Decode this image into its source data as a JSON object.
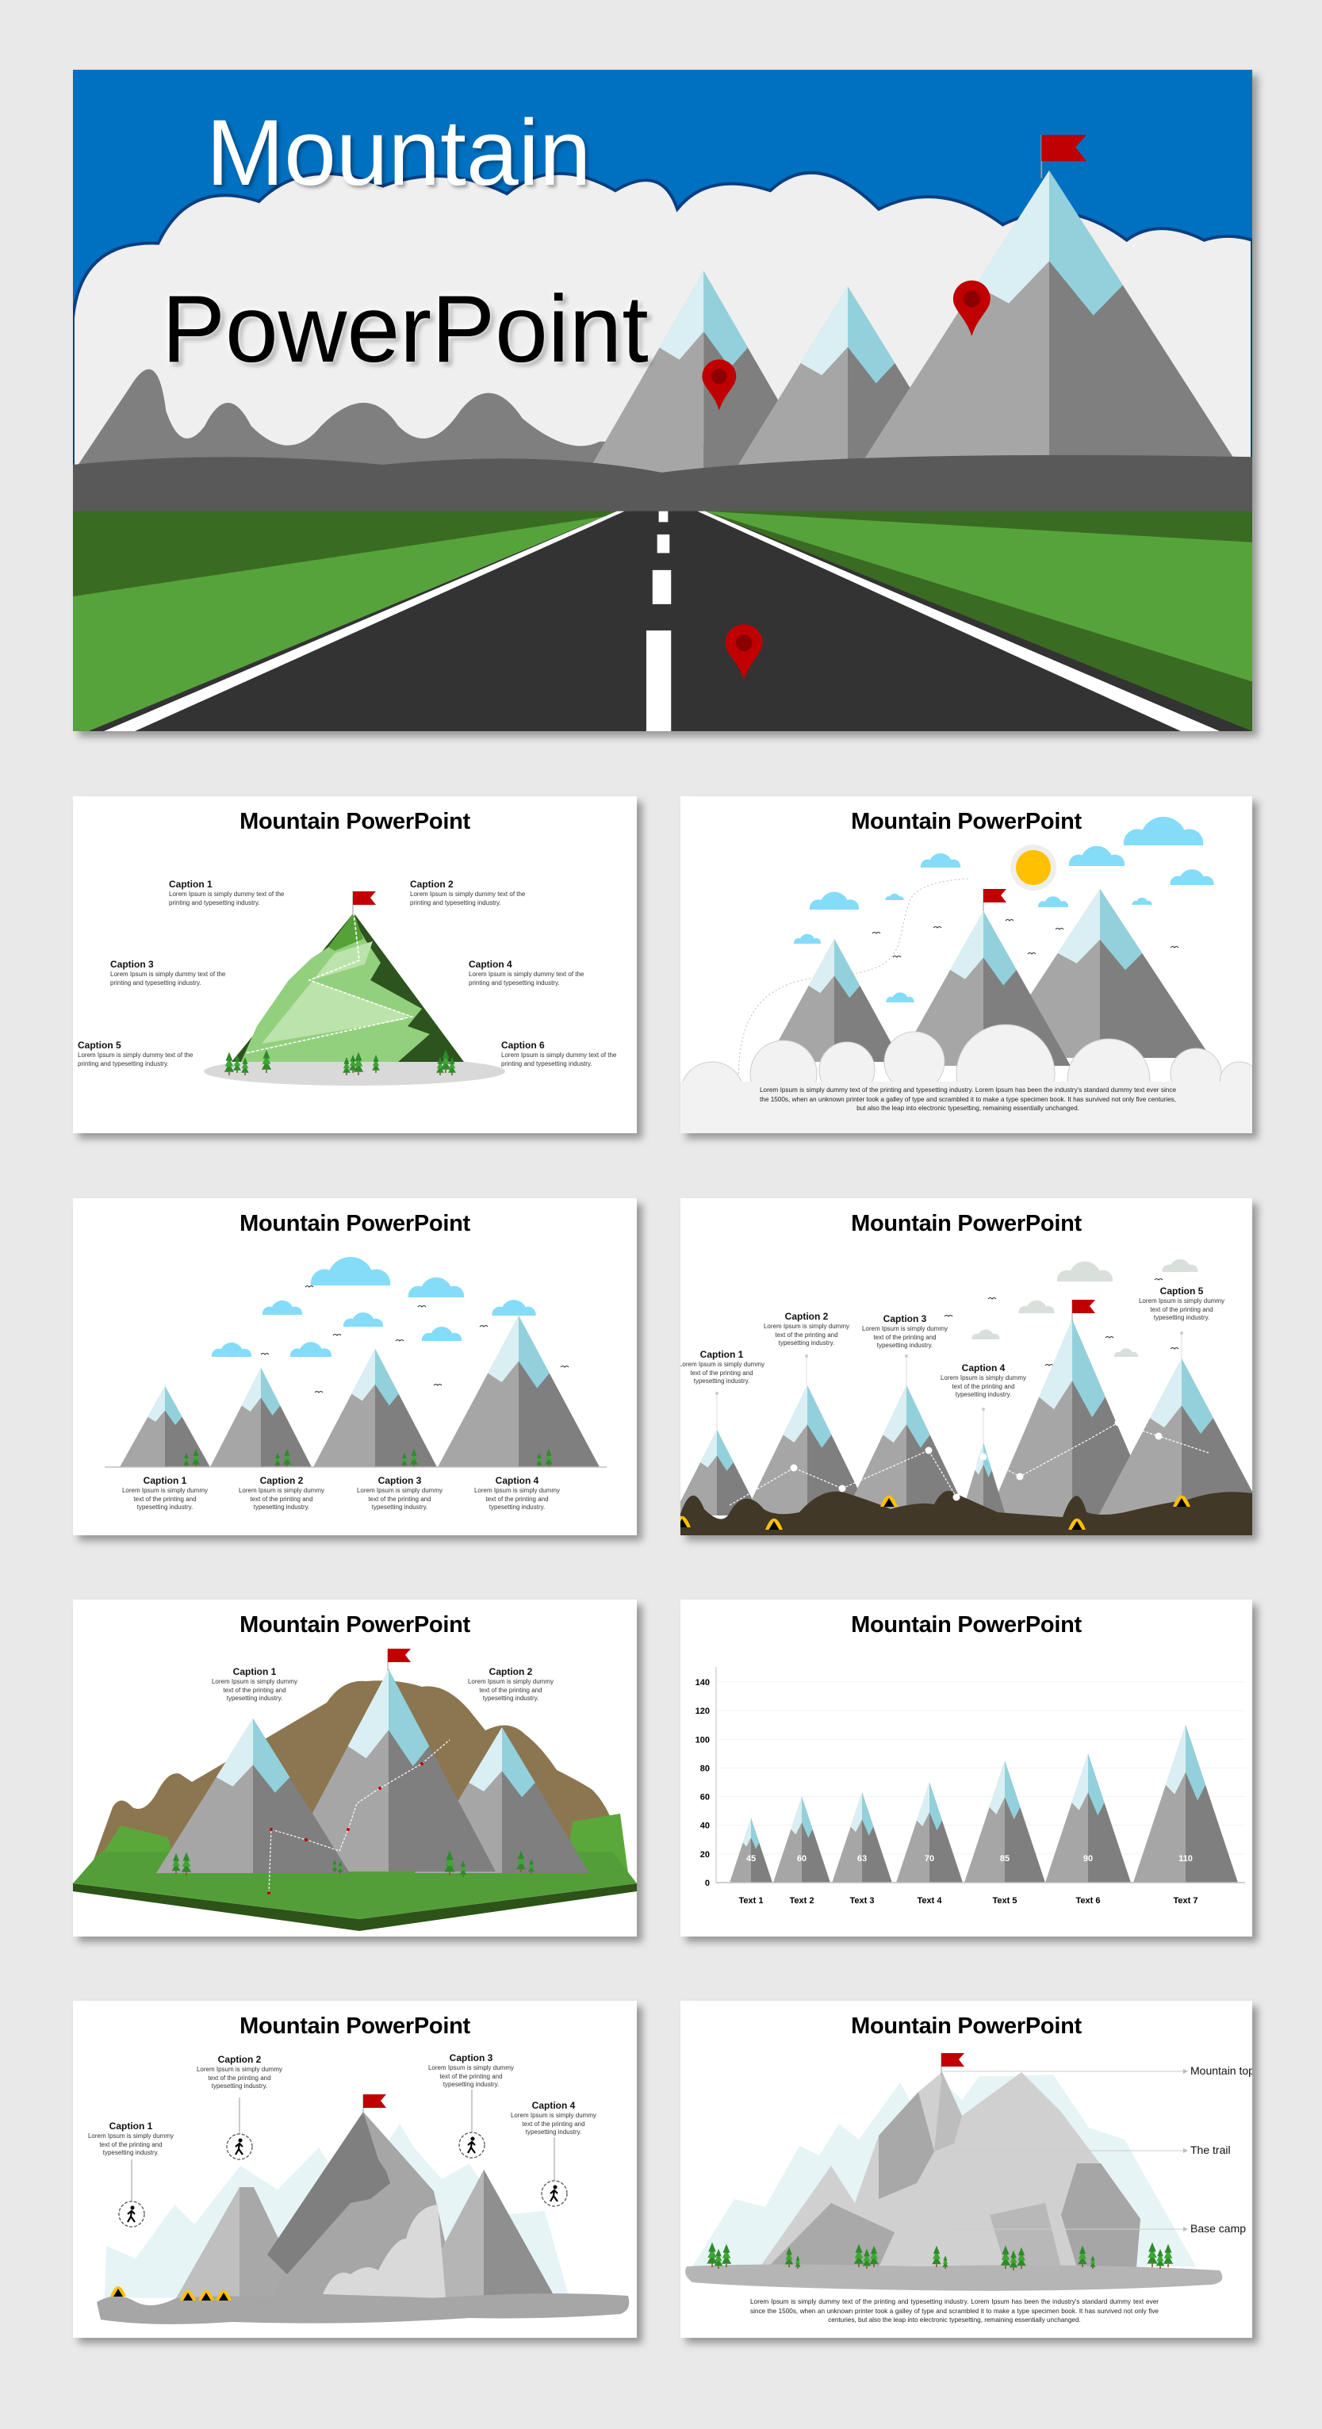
{
  "hero": {
    "title_line1": "Mountain",
    "title_line2": "PowerPoint"
  },
  "slides": {
    "s1": {
      "title": "Mountain PowerPoint",
      "captions": [
        {
          "heading": "Caption 1",
          "body": "Lorem Ipsum is simply dummy text of the printing and typesetting industry."
        },
        {
          "heading": "Caption 2",
          "body": "Lorem Ipsum is simply dummy text of the printing and typesetting industry."
        },
        {
          "heading": "Caption 3",
          "body": "Lorem Ipsum is simply dummy text of the printing and typesetting industry."
        },
        {
          "heading": "Caption 4",
          "body": "Lorem Ipsum is simply dummy text of the printing and typesetting industry."
        },
        {
          "heading": "Caption 5",
          "body": "Lorem Ipsum is simply dummy text of the printing and typesetting industry."
        },
        {
          "heading": "Caption 6",
          "body": "Lorem Ipsum is simply dummy text of the printing and typesetting industry."
        }
      ]
    },
    "s2": {
      "title": "Mountain PowerPoint",
      "paragraph": "Lorem Ipsum is simply dummy text of the printing and typesetting industry. Lorem Ipsum has been the industry's standard dummy text ever since the 1500s, when an unknown printer took a galley of type and scrambled it to make a type specimen book. It has survived not only five centuries, but also the leap into electronic typesetting, remaining essentially unchanged."
    },
    "s3": {
      "title": "Mountain PowerPoint",
      "captions": [
        {
          "heading": "Caption 1",
          "body": "Lorem Ipsum is simply dummy text of the printing and typesetting industry."
        },
        {
          "heading": "Caption 2",
          "body": "Lorem Ipsum is simply dummy text of the printing and typesetting industry."
        },
        {
          "heading": "Caption 3",
          "body": "Lorem Ipsum is simply dummy text of the printing and typesetting industry."
        },
        {
          "heading": "Caption 4",
          "body": "Lorem Ipsum is simply dummy text of the printing and typesetting industry."
        }
      ]
    },
    "s4": {
      "title": "Mountain PowerPoint",
      "captions": [
        {
          "heading": "Caption 1",
          "body": "Lorem Ipsum is simply dummy text of the printing and typesetting industry."
        },
        {
          "heading": "Caption 2",
          "body": "Lorem Ipsum is simply dummy text of the printing and typesetting industry."
        },
        {
          "heading": "Caption 3",
          "body": "Lorem Ipsum is simply dummy text of the printing and typesetting industry."
        },
        {
          "heading": "Caption 4",
          "body": "Lorem Ipsum is simply dummy text of the printing and typesetting industry."
        },
        {
          "heading": "Caption 5",
          "body": "Lorem Ipsum is simply dummy text of the printing and typesetting industry."
        }
      ]
    },
    "s5": {
      "title": "Mountain PowerPoint",
      "captions": [
        {
          "heading": "Caption 1",
          "body": "Lorem Ipsum is simply dummy text of the printing and typesetting industry."
        },
        {
          "heading": "Caption 2",
          "body": "Lorem Ipsum is simply dummy text of the printing and typesetting industry."
        }
      ]
    },
    "s6": {
      "title": "Mountain PowerPoint"
    },
    "s7": {
      "title": "Mountain PowerPoint",
      "captions": [
        {
          "heading": "Caption 1",
          "body": "Lorem Ipsum is simply dummy text of the printing and typesetting industry."
        },
        {
          "heading": "Caption 2",
          "body": "Lorem Ipsum is simply dummy text of the printing and typesetting industry."
        },
        {
          "heading": "Caption 3",
          "body": "Lorem Ipsum is simply dummy text of the printing and typesetting industry."
        },
        {
          "heading": "Caption 4",
          "body": "Lorem Ipsum is simply dummy text of the printing and typesetting industry."
        }
      ]
    },
    "s8": {
      "title": "Mountain PowerPoint",
      "labels": [
        "Mountain top",
        "The trail",
        "Base camp"
      ],
      "paragraph": "Lorem Ipsum is simply dummy text of the printing and typesetting industry. Lorem Ipsum has been the industry's standard dummy text ever since the 1500s, when an unknown printer took a galley of type and scrambled it to make a type specimen book. It has survived not only five centuries, but also the leap into electronic typesetting, remaining essentially unchanged."
    }
  },
  "colors": {
    "sky_blue": "#0070c0",
    "flag_red": "#c00000",
    "rock_light": "#a6a6a6",
    "rock_dark": "#7f7f7f",
    "snow_light": "#daeff3",
    "snow_blue": "#92d1dc",
    "cloud_blue": "#84dcf8",
    "grass_green": "#549e39",
    "earth_brown": "#413828",
    "tent_yellow": "#ffc000",
    "sun_yellow": "#ffc000"
  },
  "chart_data": {
    "type": "bar",
    "title": "",
    "categories": [
      "Text 1",
      "Text 2",
      "Text 3",
      "Text 4",
      "Text 5",
      "Text 6",
      "Text 7"
    ],
    "values": [
      45,
      60,
      63,
      70,
      85,
      90,
      110
    ],
    "data_labels": true,
    "ylim": [
      0,
      140
    ],
    "yticks": [
      0,
      20,
      40,
      60,
      80,
      100,
      120,
      140
    ],
    "grid": true,
    "xlabel": "",
    "ylabel": "",
    "mark_shape": "mountain"
  }
}
